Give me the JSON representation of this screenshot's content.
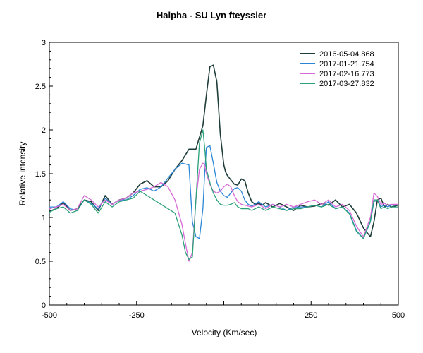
{
  "chart_data": {
    "type": "line",
    "title": "Halpha - SU Lyn   fteyssier",
    "xlabel": "Velocity (Km/sec)",
    "ylabel": "Relative intensity",
    "xlim": [
      -500,
      500
    ],
    "ylim": [
      0,
      3
    ],
    "x_ticks": [
      -500,
      -250,
      250,
      500
    ],
    "x_tick_labels": [
      "-500",
      "-250",
      "250",
      "500"
    ],
    "y_ticks": [
      0,
      0.5,
      1,
      1.5,
      2,
      2.5,
      3
    ],
    "y_tick_labels": [
      "0",
      "0.5",
      "1",
      "1.5",
      "2",
      "2.5",
      "3"
    ],
    "legend_position": "top-right",
    "series": [
      {
        "name": "2016-05-04.868",
        "color": "#1f3d3a",
        "x": [
          -500,
          -480,
          -460,
          -440,
          -420,
          -400,
          -380,
          -360,
          -340,
          -320,
          -300,
          -280,
          -260,
          -240,
          -220,
          -200,
          -180,
          -160,
          -140,
          -120,
          -100,
          -80,
          -60,
          -50,
          -40,
          -30,
          -20,
          -10,
          0,
          5,
          10,
          20,
          30,
          40,
          50,
          60,
          70,
          80,
          90,
          100,
          110,
          120,
          140,
          160,
          180,
          200,
          220,
          240,
          260,
          280,
          300,
          320,
          340,
          360,
          380,
          400,
          420,
          430,
          440,
          450,
          460,
          470,
          480,
          500
        ],
        "y": [
          1.07,
          1.1,
          1.17,
          1.08,
          1.1,
          1.2,
          1.18,
          1.08,
          1.25,
          1.15,
          1.2,
          1.22,
          1.28,
          1.38,
          1.42,
          1.35,
          1.35,
          1.42,
          1.55,
          1.65,
          1.78,
          1.78,
          2.05,
          2.4,
          2.72,
          2.74,
          2.55,
          1.95,
          1.6,
          1.52,
          1.48,
          1.43,
          1.38,
          1.37,
          1.44,
          1.42,
          1.28,
          1.18,
          1.15,
          1.16,
          1.14,
          1.17,
          1.12,
          1.16,
          1.12,
          1.08,
          1.14,
          1.12,
          1.13,
          1.16,
          1.14,
          1.2,
          1.12,
          1.15,
          1.05,
          0.88,
          0.78,
          0.95,
          1.2,
          1.22,
          1.12,
          1.15,
          1.12,
          1.14
        ]
      },
      {
        "name": "2017-01-21.754",
        "color": "#2b86d6",
        "x": [
          -500,
          -480,
          -460,
          -440,
          -420,
          -400,
          -380,
          -360,
          -340,
          -320,
          -300,
          -280,
          -260,
          -240,
          -220,
          -200,
          -180,
          -160,
          -140,
          -120,
          -100,
          -90,
          -80,
          -70,
          -60,
          -55,
          -50,
          -40,
          -30,
          -20,
          -10,
          0,
          5,
          10,
          20,
          30,
          40,
          50,
          60,
          70,
          80,
          100,
          120,
          140,
          160,
          180,
          200,
          220,
          240,
          260,
          280,
          300,
          320,
          340,
          360,
          380,
          400,
          420,
          430,
          440,
          450,
          460,
          470,
          480,
          500
        ],
        "y": [
          1.12,
          1.12,
          1.18,
          1.1,
          1.08,
          1.2,
          1.16,
          1.1,
          1.22,
          1.15,
          1.2,
          1.2,
          1.25,
          1.32,
          1.34,
          1.3,
          1.35,
          1.45,
          1.55,
          1.62,
          1.6,
          0.95,
          0.78,
          0.76,
          1.1,
          1.5,
          1.8,
          1.82,
          1.62,
          1.4,
          1.3,
          1.25,
          1.24,
          1.23,
          1.28,
          1.33,
          1.34,
          1.3,
          1.2,
          1.15,
          1.13,
          1.18,
          1.12,
          1.15,
          1.12,
          1.08,
          1.12,
          1.12,
          1.12,
          1.14,
          1.12,
          1.18,
          1.1,
          1.12,
          1.05,
          0.85,
          0.76,
          0.95,
          1.18,
          1.2,
          1.12,
          1.14,
          1.12,
          1.14,
          1.14
        ]
      },
      {
        "name": "2017-02-16.773",
        "color": "#d66ad6",
        "x": [
          -500,
          -480,
          -460,
          -440,
          -420,
          -400,
          -380,
          -360,
          -340,
          -320,
          -300,
          -280,
          -260,
          -240,
          -220,
          -200,
          -180,
          -160,
          -140,
          -120,
          -110,
          -100,
          -90,
          -80,
          -70,
          -60,
          -55,
          -50,
          -40,
          -30,
          -20,
          -10,
          0,
          10,
          20,
          30,
          40,
          50,
          60,
          70,
          80,
          100,
          120,
          140,
          160,
          180,
          200,
          220,
          240,
          260,
          280,
          300,
          320,
          340,
          360,
          380,
          400,
          420,
          430,
          440,
          450,
          460,
          470,
          480,
          500
        ],
        "y": [
          1.1,
          1.12,
          1.15,
          1.08,
          1.1,
          1.25,
          1.2,
          1.12,
          1.2,
          1.15,
          1.2,
          1.22,
          1.28,
          1.3,
          1.32,
          1.35,
          1.4,
          1.35,
          1.2,
          0.92,
          0.7,
          0.5,
          0.6,
          1.2,
          1.55,
          1.62,
          1.6,
          1.5,
          1.38,
          1.3,
          1.28,
          1.3,
          1.35,
          1.38,
          1.35,
          1.25,
          1.18,
          1.15,
          1.14,
          1.13,
          1.12,
          1.15,
          1.1,
          1.15,
          1.12,
          1.15,
          1.12,
          1.15,
          1.18,
          1.2,
          1.15,
          1.2,
          1.12,
          1.15,
          1.08,
          0.9,
          0.78,
          1.0,
          1.28,
          1.24,
          1.15,
          1.16,
          1.14,
          1.15,
          1.15
        ]
      },
      {
        "name": "2017-03-27.832",
        "color": "#2ca07a",
        "x": [
          -500,
          -480,
          -460,
          -440,
          -420,
          -400,
          -380,
          -360,
          -340,
          -320,
          -300,
          -280,
          -260,
          -240,
          -220,
          -200,
          -180,
          -160,
          -140,
          -120,
          -110,
          -100,
          -90,
          -80,
          -70,
          -60,
          -55,
          -50,
          -40,
          -30,
          -20,
          -10,
          0,
          10,
          20,
          30,
          40,
          50,
          60,
          70,
          80,
          100,
          120,
          140,
          160,
          180,
          200,
          220,
          240,
          260,
          280,
          300,
          320,
          340,
          360,
          380,
          400,
          420,
          430,
          440,
          450,
          460,
          470,
          480,
          500
        ],
        "y": [
          1.06,
          1.1,
          1.12,
          1.05,
          1.08,
          1.2,
          1.15,
          1.05,
          1.18,
          1.12,
          1.18,
          1.2,
          1.22,
          1.3,
          1.25,
          1.2,
          1.15,
          1.1,
          1.05,
          0.8,
          0.6,
          0.52,
          0.55,
          1.2,
          1.85,
          2.0,
          1.8,
          1.55,
          1.4,
          1.28,
          1.2,
          1.15,
          1.14,
          1.14,
          1.15,
          1.17,
          1.12,
          1.1,
          1.1,
          1.1,
          1.08,
          1.12,
          1.08,
          1.12,
          1.1,
          1.08,
          1.1,
          1.1,
          1.12,
          1.14,
          1.12,
          1.15,
          1.1,
          1.12,
          1.04,
          0.84,
          0.76,
          0.96,
          1.2,
          1.2,
          1.1,
          1.12,
          1.1,
          1.12,
          1.12
        ]
      }
    ]
  }
}
